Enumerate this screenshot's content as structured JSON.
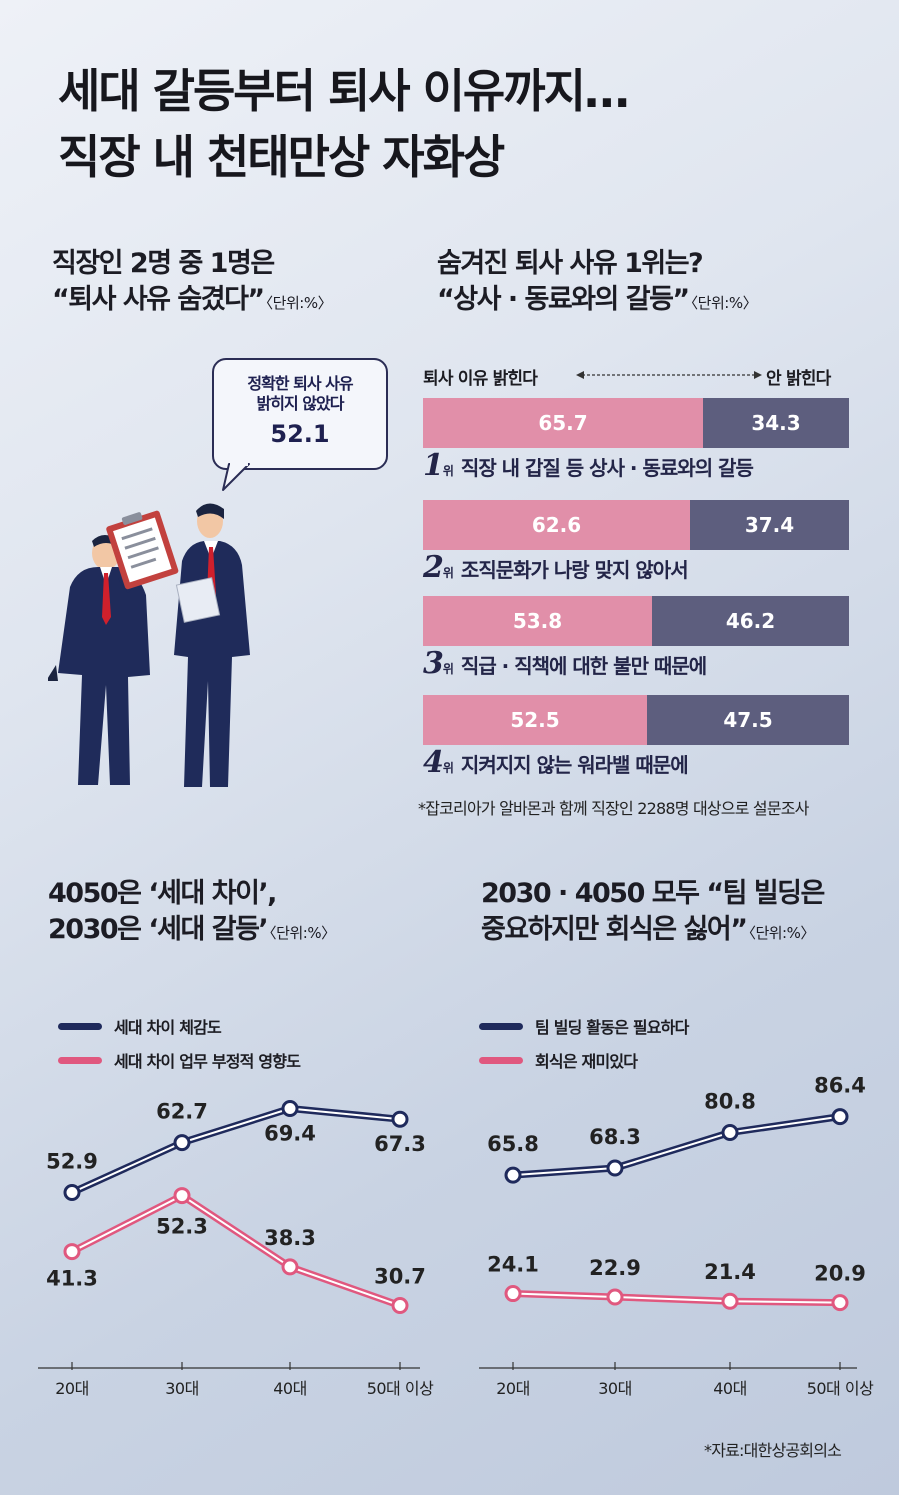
{
  "title": {
    "line1": "세대 갈등부터 퇴사 이유까지…",
    "line2": "직장 내 천태만상 자화상"
  },
  "colors": {
    "navy": "#1f2a5c",
    "pink": "#e0587f",
    "bar_pink": "#e18fa9",
    "bar_navy": "#5d5e7e"
  },
  "section1": {
    "title_line1": "직장인 2명 중 1명은",
    "title_line2": "“퇴사 사유 숨겼다”",
    "unit": "〈단위:%〉",
    "bubble_line1": "정확한 퇴사 사유",
    "bubble_line2": "밝히지 않았다",
    "bubble_value": "52.1",
    "illustration": "two-businessmen-with-clipboard"
  },
  "section2": {
    "title_line1": "숨겨진 퇴사 사유 1위는?",
    "title_line2": "“상사 · 동료와의 갈등”",
    "unit": "〈단위:%〉",
    "left_label": "퇴사 이유 밝힌다",
    "right_label": "안 밝힌다",
    "rank_suffix": "위",
    "note": "*잡코리아가 알바몬과 함께 직장인 2288명 대상으로 설문조사"
  },
  "section3": {
    "title_line1": "4050은 ‘세대 차이’,",
    "title_line2": "2030은 ‘세대 갈등’",
    "unit": "〈단위:%〉"
  },
  "section4": {
    "title_line1": "2030 · 4050 모두 “팀 빌딩은",
    "title_line2": "중요하지만 회식은 싫어”",
    "unit": "〈단위:%〉"
  },
  "source": "*자료:대한상공회의소",
  "chart_data": [
    {
      "type": "bar",
      "stacked": true,
      "categories": [
        "직장 내 갑질 등 상사 · 동료와의 갈등",
        "조직문화가 나랑 맞지 않아서",
        "직급 · 직책에 대한 불만 때문에",
        "지켜지지 않는 워라밸 때문에"
      ],
      "ranks": [
        "1",
        "2",
        "3",
        "4"
      ],
      "series": [
        {
          "name": "퇴사 이유 밝힌다",
          "values": [
            65.7,
            62.6,
            53.8,
            52.5
          ]
        },
        {
          "name": "안 밝힌다",
          "values": [
            34.3,
            37.4,
            46.2,
            47.5
          ]
        }
      ],
      "labels": [
        [
          "65.7",
          "62.6",
          "53.8",
          "52.5"
        ],
        [
          "34.3",
          "37.4",
          "46.2",
          "47.5"
        ]
      ],
      "ylim": [
        0,
        100
      ]
    },
    {
      "type": "line",
      "categories": [
        "20대",
        "30대",
        "40대",
        "50대 이상"
      ],
      "series": [
        {
          "name": "세대 차이 체감도",
          "values": [
            52.9,
            62.7,
            69.4,
            67.3
          ],
          "labels": [
            "52.9",
            "62.7",
            "69.4",
            "67.3"
          ],
          "color": "#1f2a5c"
        },
        {
          "name": "세대 차이 업무 부정적 영향도",
          "values": [
            41.3,
            52.3,
            38.3,
            30.7
          ],
          "labels": [
            "41.3",
            "52.3",
            "38.3",
            "30.7"
          ],
          "color": "#e0587f"
        }
      ],
      "ylim": [
        20,
        75
      ],
      "grid": false,
      "legend": "top-left"
    },
    {
      "type": "line",
      "categories": [
        "20대",
        "30대",
        "40대",
        "50대 이상"
      ],
      "series": [
        {
          "name": "팀 빌딩 활동은 필요하다",
          "values": [
            65.8,
            68.3,
            80.8,
            86.4
          ],
          "labels": [
            "65.8",
            "68.3",
            "80.8",
            "86.4"
          ],
          "color": "#1f2a5c"
        },
        {
          "name": "회식은 재미있다",
          "values": [
            24.1,
            22.9,
            21.4,
            20.9
          ],
          "labels": [
            "24.1",
            "22.9",
            "21.4",
            "20.9"
          ],
          "color": "#e0587f"
        }
      ],
      "ylim": [
        0,
        100
      ],
      "grid": false,
      "legend": "top-left"
    }
  ]
}
